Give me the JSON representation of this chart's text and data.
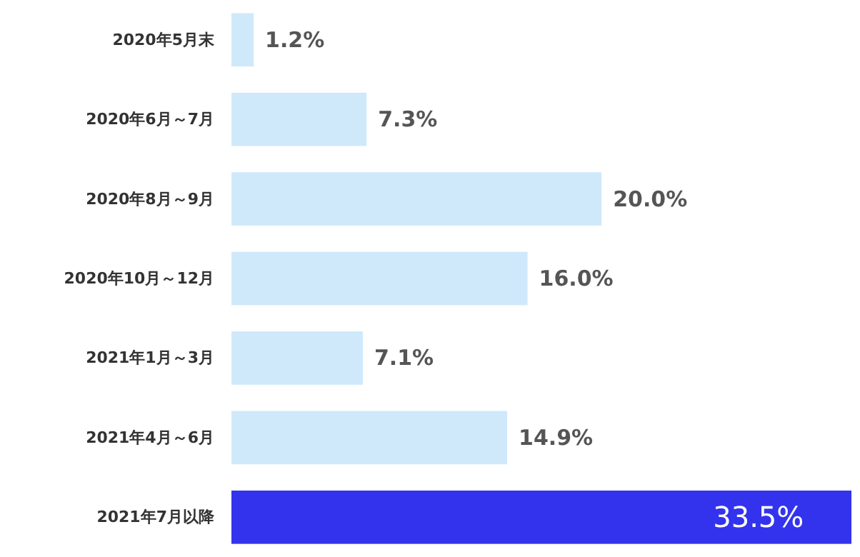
{
  "chart_data": {
    "type": "bar",
    "orientation": "horizontal",
    "categories": [
      "2020年5月末",
      "2020年6月～7月",
      "2020年8月～9月",
      "2020年10月～12月",
      "2021年1月～3月",
      "2021年4月～6月",
      "2021年7月以降"
    ],
    "values": [
      1.2,
      7.3,
      20.0,
      16.0,
      7.1,
      14.9,
      33.5
    ],
    "colors": [
      "#cfe9fb",
      "#cfe9fb",
      "#cfe9fb",
      "#cfe9fb",
      "#cfe9fb",
      "#cfe9fb",
      "#3333ee"
    ],
    "value_labels": [
      "1.2%",
      "7.3%",
      "20.0%",
      "16.0%",
      "7.1%",
      "14.9%",
      "33.5%"
    ]
  }
}
